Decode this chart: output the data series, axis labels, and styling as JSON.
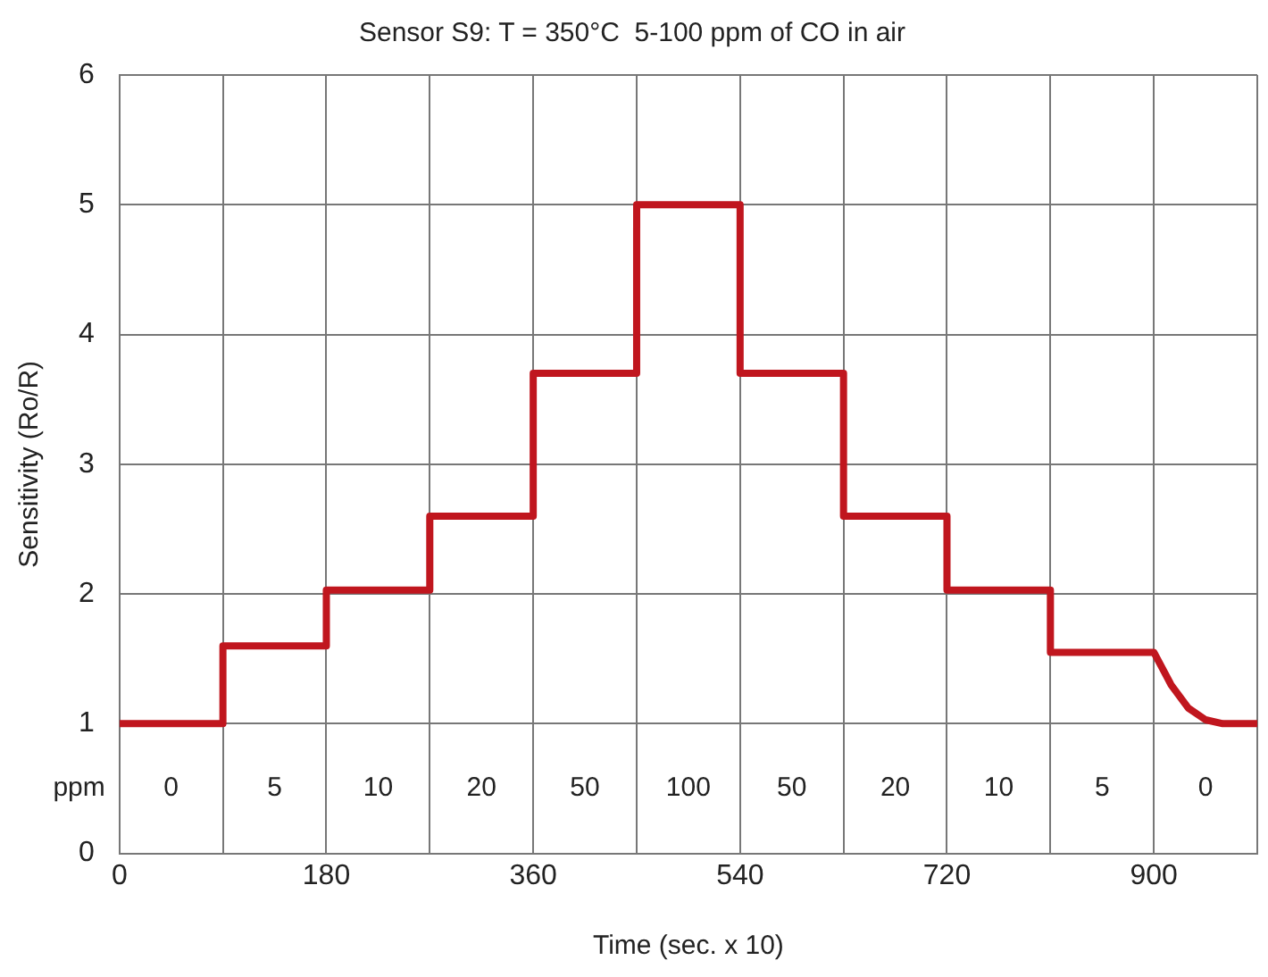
{
  "chart_data": {
    "type": "line",
    "title": "Sensor S9: T = 350°C  5-100 ppm of CO in air",
    "xlabel": "Time (sec. x 10)",
    "ylabel": "Sensitivity (Ro/R)",
    "x": [
      0,
      90,
      90,
      180,
      180,
      270,
      270,
      360,
      360,
      450,
      450,
      540,
      540,
      630,
      630,
      720,
      720,
      810,
      810,
      900,
      915,
      930,
      945,
      960,
      990
    ],
    "series": [
      {
        "color": "#c0161e",
        "values": [
          1.0,
          1.0,
          1.6,
          1.6,
          2.03,
          2.03,
          2.6,
          2.6,
          3.7,
          3.7,
          5.0,
          5.0,
          3.7,
          3.7,
          2.6,
          2.6,
          2.03,
          2.03,
          1.55,
          1.55,
          1.3,
          1.12,
          1.03,
          1.0,
          1.0
        ]
      }
    ],
    "xlim": [
      0,
      990
    ],
    "xticks": [
      0,
      {
        "value": 90,
        "label": null
      },
      180,
      {
        "value": 270,
        "label": null
      },
      360,
      {
        "value": 450,
        "label": null
      },
      540,
      {
        "value": 630,
        "label": null
      },
      720,
      {
        "value": 810,
        "label": null
      },
      900,
      {
        "value": 990,
        "label": null
      }
    ],
    "ylim": [
      0,
      6
    ],
    "yticks": [
      0,
      1,
      2,
      3,
      4,
      5,
      6
    ],
    "grid": true,
    "legend": false,
    "marker": "none",
    "line_style": "solid",
    "annotations": [
      "ppm",
      "0",
      "5",
      "10",
      "20",
      "50",
      "100",
      "50",
      "20",
      "10",
      "5",
      "0"
    ]
  }
}
